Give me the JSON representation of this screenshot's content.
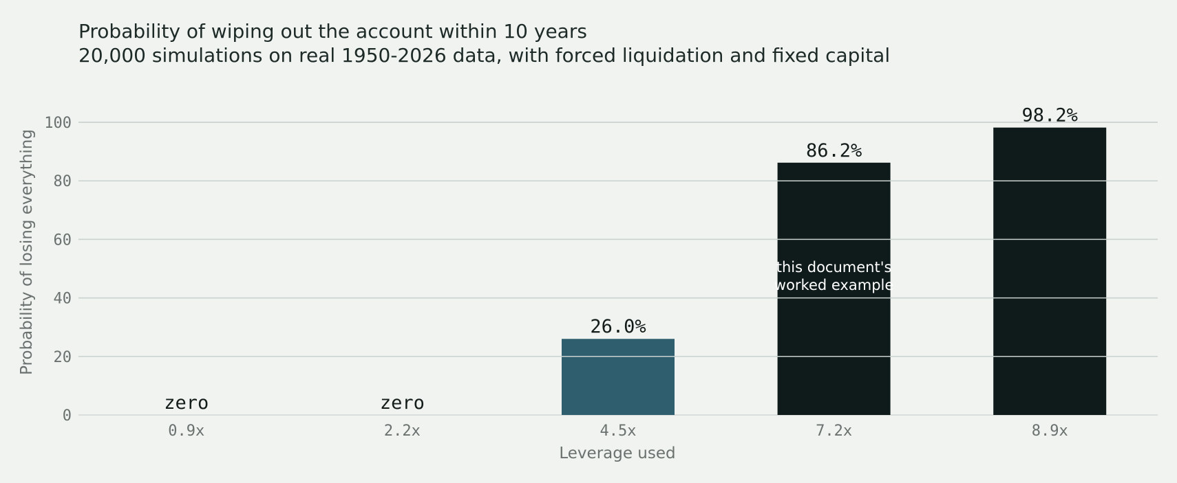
{
  "chart_data": {
    "type": "bar",
    "title": "Probability of wiping out the account within 10 years",
    "subtitle": "20,000 simulations on real 1950-2026 data, with forced liquidation and fixed capital",
    "xlabel": "Leverage used",
    "ylabel": "Probability of losing everything",
    "categories": [
      "0.9x",
      "2.2x",
      "4.5x",
      "7.2x",
      "8.9x"
    ],
    "values": [
      0,
      0,
      26.0,
      86.2,
      98.2
    ],
    "data_labels": [
      "zero",
      "zero",
      "26.0%",
      "86.2%",
      "98.2%"
    ],
    "bar_colors": [
      "#2f5f6e",
      "#2f5f6e",
      "#2f5f6e",
      "#0f1b1a",
      "#0f1b1a"
    ],
    "ylim": [
      0,
      100
    ],
    "yticks": [
      0,
      20,
      40,
      60,
      80,
      100
    ],
    "grid": true,
    "annotation": {
      "lines": [
        "this document's",
        "worked example"
      ],
      "category": "7.2x"
    }
  }
}
